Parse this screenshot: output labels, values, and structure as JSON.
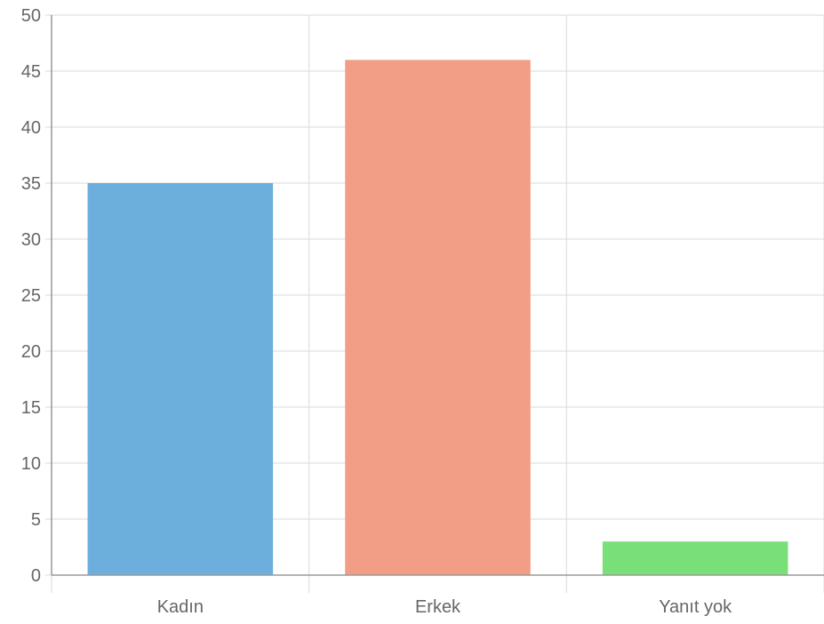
{
  "chart_data": {
    "type": "bar",
    "categories": [
      "Kadın",
      "Erkek",
      "Yanıt yok"
    ],
    "values": [
      35,
      46,
      3
    ],
    "colors": [
      "#6cafdc",
      "#f29e86",
      "#79df79"
    ],
    "ylim": [
      0,
      50
    ],
    "yticks": [
      "0",
      "5",
      "10",
      "15",
      "20",
      "25",
      "30",
      "35",
      "40",
      "45",
      "50"
    ],
    "title": "",
    "xlabel": "",
    "ylabel": "",
    "grid": true,
    "legend": "none"
  }
}
